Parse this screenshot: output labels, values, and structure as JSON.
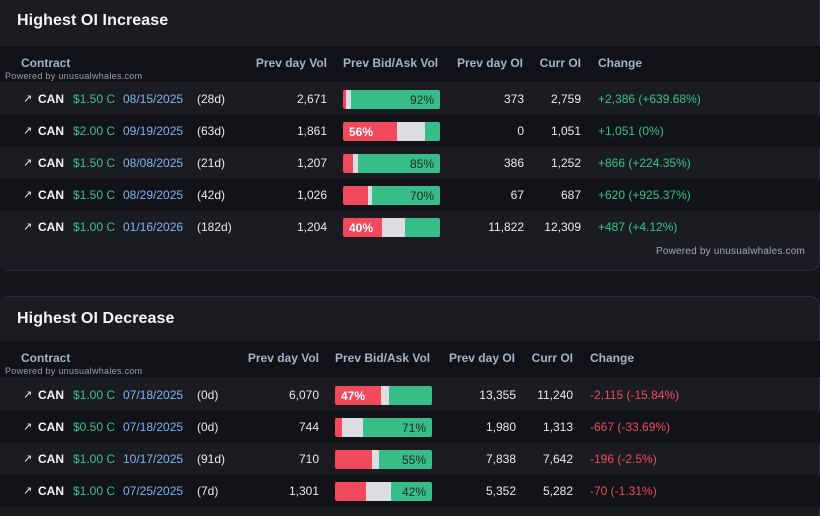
{
  "powered_by": "Powered by unusualwhales.com",
  "columns": {
    "contract": "Contract",
    "prev_vol": "Prev day Vol",
    "bidask": "Prev Bid/Ask Vol",
    "prev_oi": "Prev day OI",
    "curr_oi": "Curr OI",
    "change": "Change"
  },
  "colors": {
    "bid": "#f0495c",
    "mid": "#dcdde2",
    "ask": "#37bd87",
    "positive": "#36c48d",
    "negative": "#f14a5f"
  },
  "increase": {
    "title": "Highest OI Increase",
    "rows": [
      {
        "arrow": "↗",
        "ticker": "CAN",
        "strike": "$1.50 C",
        "date": "08/15/2025",
        "days": "(28d)",
        "prev_vol": "2,671",
        "bid": 0.03,
        "mid": 0.05,
        "ask": 0.92,
        "label": "92%",
        "label_side": "right",
        "prev_oi": "373",
        "curr_oi": "2,759",
        "change": "+2,386 (+639.68%)",
        "sign": "pos"
      },
      {
        "arrow": "↗",
        "ticker": "CAN",
        "strike": "$2.00 C",
        "date": "09/19/2025",
        "days": "(63d)",
        "prev_vol": "1,861",
        "bid": 0.56,
        "mid": 0.29,
        "ask": 0.15,
        "label": "56%",
        "label_side": "left",
        "prev_oi": "0",
        "curr_oi": "1,051",
        "change": "+1,051 (0%)",
        "sign": "pos"
      },
      {
        "arrow": "↗",
        "ticker": "CAN",
        "strike": "$1.50 C",
        "date": "08/08/2025",
        "days": "(21d)",
        "prev_vol": "1,207",
        "bid": 0.1,
        "mid": 0.05,
        "ask": 0.85,
        "label": "85%",
        "label_side": "right",
        "prev_oi": "386",
        "curr_oi": "1,252",
        "change": "+866 (+224.35%)",
        "sign": "pos"
      },
      {
        "arrow": "↗",
        "ticker": "CAN",
        "strike": "$1.50 C",
        "date": "08/29/2025",
        "days": "(42d)",
        "prev_vol": "1,026",
        "bid": 0.26,
        "mid": 0.04,
        "ask": 0.7,
        "label": "70%",
        "label_side": "right",
        "prev_oi": "67",
        "curr_oi": "687",
        "change": "+620 (+925.37%)",
        "sign": "pos"
      },
      {
        "arrow": "↗",
        "ticker": "CAN",
        "strike": "$1.00 C",
        "date": "01/16/2026",
        "days": "(182d)",
        "prev_vol": "1,204",
        "bid": 0.4,
        "mid": 0.24,
        "ask": 0.36,
        "label": "40%",
        "label_side": "left",
        "prev_oi": "11,822",
        "curr_oi": "12,309",
        "change": "+487 (+4.12%)",
        "sign": "pos"
      }
    ]
  },
  "decrease": {
    "title": "Highest OI Decrease",
    "rows": [
      {
        "arrow": "↗",
        "ticker": "CAN",
        "strike": "$1.00 C",
        "date": "07/18/2025",
        "days": "(0d)",
        "prev_vol": "6,070",
        "bid": 0.47,
        "mid": 0.09,
        "ask": 0.44,
        "label": "47%",
        "label_side": "left",
        "prev_oi": "13,355",
        "curr_oi": "11,240",
        "change": "-2,115 (-15.84%)",
        "sign": "neg"
      },
      {
        "arrow": "↗",
        "ticker": "CAN",
        "strike": "$0.50 C",
        "date": "07/18/2025",
        "days": "(0d)",
        "prev_vol": "744",
        "bid": 0.07,
        "mid": 0.22,
        "ask": 0.71,
        "label": "71%",
        "label_side": "right",
        "prev_oi": "1,980",
        "curr_oi": "1,313",
        "change": "-667 (-33.69%)",
        "sign": "neg"
      },
      {
        "arrow": "↗",
        "ticker": "CAN",
        "strike": "$1.00 C",
        "date": "10/17/2025",
        "days": "(91d)",
        "prev_vol": "710",
        "bid": 0.38,
        "mid": 0.07,
        "ask": 0.55,
        "label": "55%",
        "label_side": "right",
        "prev_oi": "7,838",
        "curr_oi": "7,642",
        "change": "-196 (-2.5%)",
        "sign": "neg"
      },
      {
        "arrow": "↗",
        "ticker": "CAN",
        "strike": "$1.00 C",
        "date": "07/25/2025",
        "days": "(7d)",
        "prev_vol": "1,301",
        "bid": 0.32,
        "mid": 0.26,
        "ask": 0.42,
        "label": "42%",
        "label_side": "right",
        "prev_oi": "5,352",
        "curr_oi": "5,282",
        "change": "-70 (-1.31%)",
        "sign": "neg"
      }
    ]
  }
}
